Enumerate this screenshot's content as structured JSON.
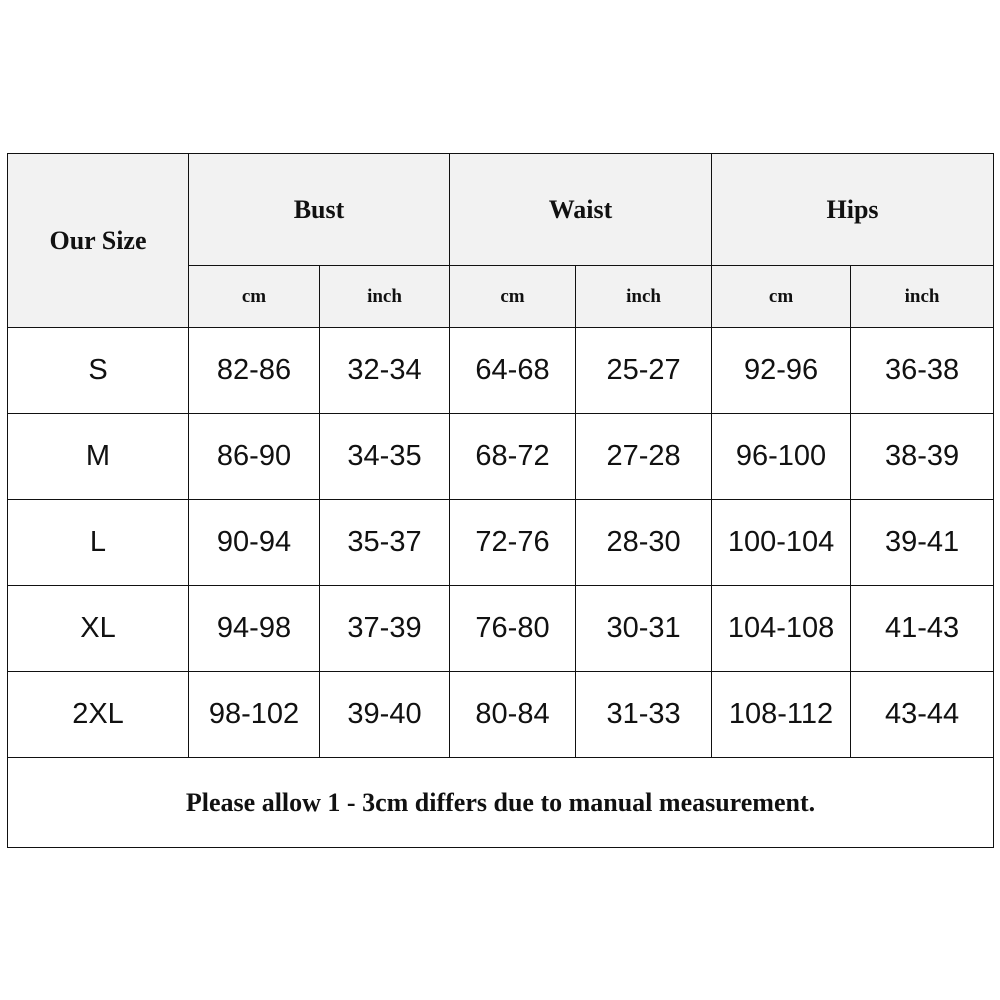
{
  "header": {
    "size_label": "Our Size",
    "groups": [
      "Bust",
      "Waist",
      "Hips"
    ],
    "units": [
      "cm",
      "inch",
      "cm",
      "inch",
      "cm",
      "inch"
    ]
  },
  "rows": [
    [
      "S",
      "82-86",
      "32-34",
      "64-68",
      "25-27",
      "92-96",
      "36-38"
    ],
    [
      "M",
      "86-90",
      "34-35",
      "68-72",
      "27-28",
      "96-100",
      "38-39"
    ],
    [
      "L",
      "90-94",
      "35-37",
      "72-76",
      "28-30",
      "100-104",
      "39-41"
    ],
    [
      "XL",
      "94-98",
      "37-39",
      "76-80",
      "30-31",
      "104-108",
      "41-43"
    ],
    [
      "2XL",
      "98-102",
      "39-40",
      "80-84",
      "31-33",
      "108-112",
      "43-44"
    ]
  ],
  "note": "Please allow 1 - 3cm differs due to manual measurement.",
  "colors": {
    "header_bg": "#f2f2f2",
    "border": "#111111"
  }
}
